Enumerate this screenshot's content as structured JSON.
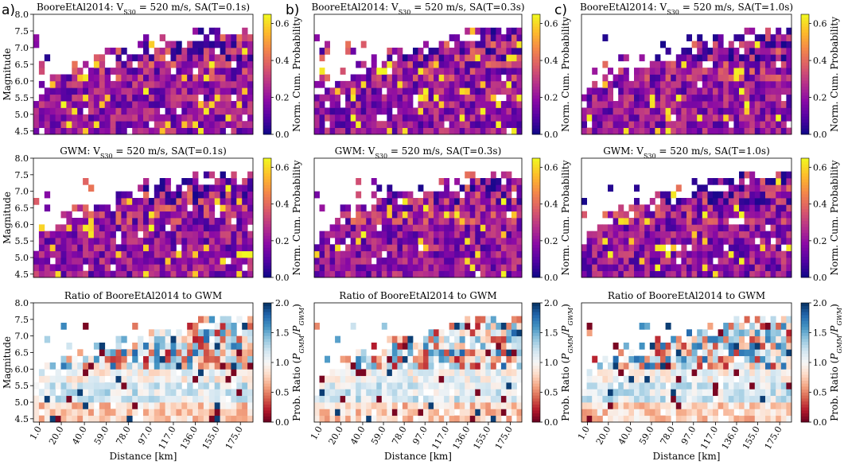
{
  "figure": {
    "panel_labels": [
      "a)",
      "b)",
      "c)"
    ],
    "x_label": "Distance [km]",
    "y_label": "Magnitude",
    "prob_colorbar_label": "Norm. Cum. Probability",
    "ratio_colorbar_label": "Prob. Ratio (P_GMM/P_GWM)"
  },
  "chart_data": [
    {
      "type": "heatmap",
      "id": "a1",
      "title": "BooreEtAl2014: V_S30 = 520 m/s, SA(T=0.1s)",
      "colormap": "plasma",
      "seed": 11,
      "colorbar": {
        "range": [
          0,
          0.65
        ],
        "ticks": [
          "0.0",
          "0.2",
          "0.4",
          "0.6"
        ]
      }
    },
    {
      "type": "heatmap",
      "id": "b1",
      "title": "BooreEtAl2014: V_S30 = 520 m/s, SA(T=0.3s)",
      "colormap": "plasma",
      "seed": 23,
      "colorbar": {
        "range": [
          0,
          0.65
        ],
        "ticks": [
          "0.0",
          "0.2",
          "0.4",
          "0.6"
        ]
      }
    },
    {
      "type": "heatmap",
      "id": "c1",
      "title": "BooreEtAl2014: V_S30 = 520 m/s, SA(T=1.0s)",
      "colormap": "plasma",
      "seed": 37,
      "colorbar": {
        "range": [
          0,
          0.65
        ],
        "ticks": [
          "0.0",
          "0.2",
          "0.4",
          "0.6"
        ]
      }
    },
    {
      "type": "heatmap",
      "id": "a2",
      "title": "GWM: V_S30 = 520 m/s, SA(T=0.1s)",
      "colormap": "plasma",
      "seed": 41,
      "colorbar": {
        "range": [
          0,
          0.65
        ],
        "ticks": [
          "0.0",
          "0.2",
          "0.4",
          "0.6"
        ]
      }
    },
    {
      "type": "heatmap",
      "id": "b2",
      "title": "GWM: V_S30 = 520 m/s, SA(T=0.3s)",
      "colormap": "plasma",
      "seed": 53,
      "colorbar": {
        "range": [
          0,
          0.65
        ],
        "ticks": [
          "0.0",
          "0.2",
          "0.4",
          "0.6"
        ]
      }
    },
    {
      "type": "heatmap",
      "id": "c2",
      "title": "GWM: V_S30 = 520 m/s, SA(T=1.0s)",
      "colormap": "plasma",
      "seed": 67,
      "colorbar": {
        "range": [
          0,
          0.65
        ],
        "ticks": [
          "0.0",
          "0.2",
          "0.4",
          "0.6"
        ]
      }
    },
    {
      "type": "heatmap",
      "id": "a3",
      "title": "Ratio of BooreEtAl2014 to GWM",
      "colormap": "RdBu",
      "seed": 71,
      "colorbar": {
        "range": [
          0,
          2.0
        ],
        "ticks": [
          "0.0",
          "0.5",
          "1.0",
          "1.5",
          "2.0"
        ]
      }
    },
    {
      "type": "heatmap",
      "id": "b3",
      "title": "Ratio of BooreEtAl2014 to GWM",
      "colormap": "RdBu",
      "seed": 83,
      "colorbar": {
        "range": [
          0,
          2.0
        ],
        "ticks": [
          "0.0",
          "0.5",
          "1.0",
          "1.5",
          "2.0"
        ]
      }
    },
    {
      "type": "heatmap",
      "id": "c3",
      "title": "Ratio of BooreEtAl2014 to GWM",
      "colormap": "RdBu",
      "seed": 97,
      "colorbar": {
        "range": [
          0,
          2.0
        ],
        "ticks": [
          "0.0",
          "0.5",
          "1.0",
          "1.5",
          "2.0"
        ]
      }
    }
  ],
  "axes": {
    "y_ticks": [
      "4.5",
      "5.0",
      "5.5",
      "6.0",
      "6.5",
      "7.0",
      "7.5",
      "8.0"
    ],
    "y_range": [
      4.4,
      8.0
    ],
    "x_ticks": [
      "1.0",
      "20.0",
      "40.0",
      "59.0",
      "78.0",
      "97.0",
      "117.0",
      "136.0",
      "155.0",
      "175.0"
    ],
    "x_range": [
      0,
      190
    ],
    "grid": {
      "x_bins": 40,
      "y_bins": 18
    }
  },
  "colors": {
    "plasma": [
      "#0d0887",
      "#5302a3",
      "#8b0aa5",
      "#b83289",
      "#db5c68",
      "#f48849",
      "#febd2a",
      "#f0f921"
    ],
    "RdBu": [
      "#67001f",
      "#b2182b",
      "#d6604d",
      "#f4a582",
      "#fddbc7",
      "#f7f7f7",
      "#d1e5f0",
      "#92c5de",
      "#4393c3",
      "#2166ac",
      "#053061"
    ]
  }
}
